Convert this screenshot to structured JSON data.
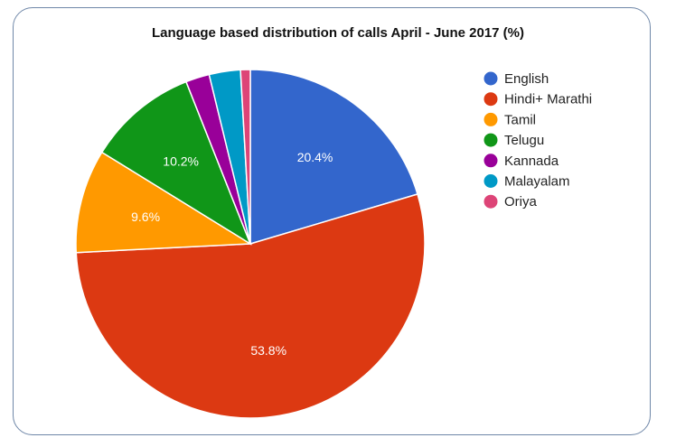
{
  "chart_data": {
    "type": "pie",
    "title": "Language based distribution of calls April - June 2017 (%)",
    "categories": [
      "English",
      "Hindi+ Marathi",
      "Tamil",
      "Telugu",
      "Kannada",
      "Malayalam",
      "Oriya"
    ],
    "values": [
      20.4,
      53.8,
      9.6,
      10.2,
      2.2,
      2.9,
      0.9
    ],
    "data_labels": [
      "20.4%",
      "53.8%",
      "9.6%",
      "10.2%",
      "",
      "",
      ""
    ],
    "colors": [
      "#3366cc",
      "#dc3912",
      "#ff9900",
      "#109618",
      "#990099",
      "#0099c6",
      "#dd4477"
    ],
    "start_angle_deg": 0,
    "direction": "clockwise",
    "legend_position": "right"
  }
}
